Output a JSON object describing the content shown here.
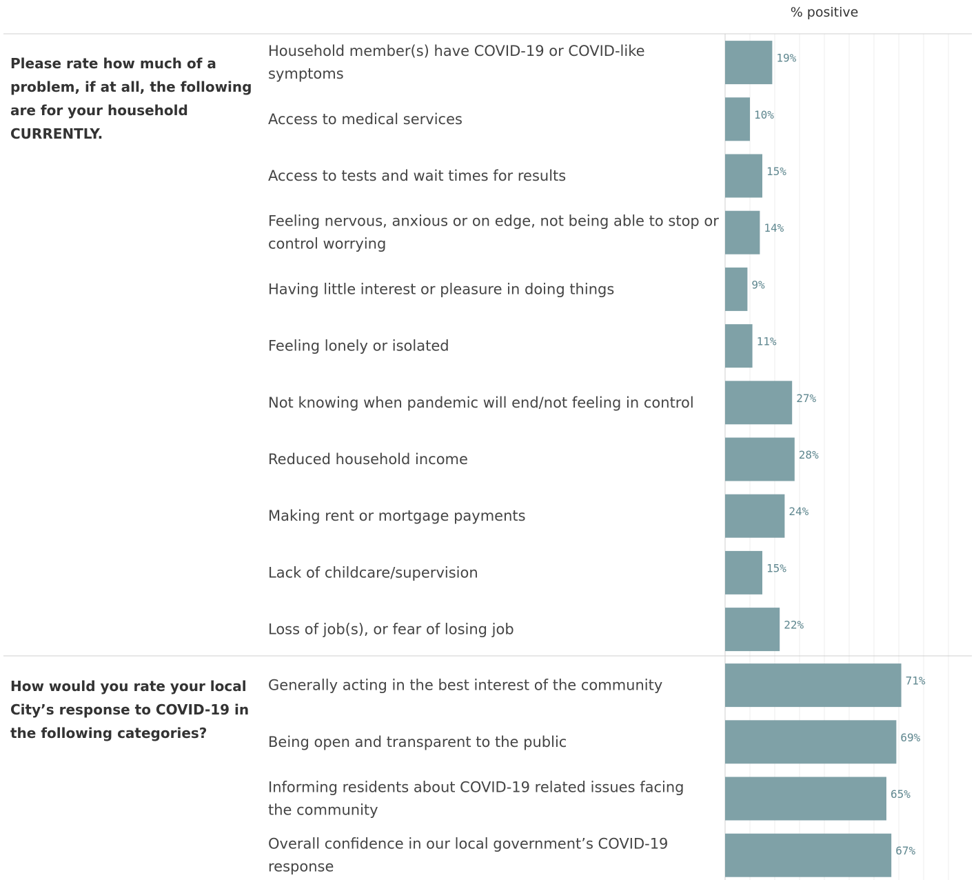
{
  "header": {
    "measure_label": "% positive"
  },
  "colors": {
    "bar": "#7fa1a7",
    "value_label": "#5f878f",
    "grid": "#ececec",
    "separator": "#cfcfcf"
  },
  "chart_data": {
    "type": "bar",
    "orientation": "horizontal",
    "value_axis_label": "% positive",
    "xlim": [
      0,
      100
    ],
    "grid": true,
    "value_format": "percent",
    "groups": [
      {
        "title": "Please rate how much of a problem, if at all, the following are for your household CURRENTLY.",
        "title_lines": [
          "Please rate how much of a",
          "problem, if at all, the following",
          "are for your household",
          "CURRENTLY."
        ],
        "rows": [
          {
            "label": "Household member(s) have COVID-19 or COVID-like symptoms",
            "lines": [
              "Household member(s) have COVID-19 or COVID-like",
              "symptoms"
            ],
            "value": 19,
            "display": "19%"
          },
          {
            "label": "Access to medical services",
            "lines": [
              "Access to medical services"
            ],
            "value": 10,
            "display": "10%"
          },
          {
            "label": "Access to tests and wait times for results",
            "lines": [
              "Access to tests and wait times for results"
            ],
            "value": 15,
            "display": "15%"
          },
          {
            "label": "Feeling nervous, anxious or on edge, not being able to stop or control worrying",
            "lines": [
              "Feeling nervous, anxious or on edge, not being able to stop or",
              "control worrying"
            ],
            "value": 14,
            "display": "14%"
          },
          {
            "label": "Having little interest or pleasure in doing things",
            "lines": [
              "Having little interest or pleasure in doing things"
            ],
            "value": 9,
            "display": "9%"
          },
          {
            "label": "Feeling lonely or isolated",
            "lines": [
              "Feeling lonely or isolated"
            ],
            "value": 11,
            "display": "11%"
          },
          {
            "label": "Not knowing when pandemic will end/not feeling in control",
            "lines": [
              "Not knowing when pandemic will end/not feeling in control"
            ],
            "value": 27,
            "display": "27%"
          },
          {
            "label": "Reduced household income",
            "lines": [
              "Reduced household income"
            ],
            "value": 28,
            "display": "28%"
          },
          {
            "label": "Making rent or mortgage payments",
            "lines": [
              "Making rent or mortgage payments"
            ],
            "value": 24,
            "display": "24%"
          },
          {
            "label": "Lack of childcare/supervision",
            "lines": [
              "Lack of childcare/supervision"
            ],
            "value": 15,
            "display": "15%"
          },
          {
            "label": "Loss of job(s), or fear of losing job",
            "lines": [
              "Loss of job(s), or fear of losing job"
            ],
            "value": 22,
            "display": "22%"
          }
        ]
      },
      {
        "title": "How would you rate your local City’s response to COVID-19 in the following categories?",
        "title_lines": [
          "How would you rate your local",
          "City’s response to COVID-19 in",
          "the following categories?"
        ],
        "rows": [
          {
            "label": "Generally acting in the best interest of the community",
            "lines": [
              "Generally acting in the best interest of the community"
            ],
            "value": 71,
            "display": "71%"
          },
          {
            "label": "Being open and transparent to the public",
            "lines": [
              "Being open and transparent to the public"
            ],
            "value": 69,
            "display": "69%"
          },
          {
            "label": "Informing residents about COVID-19 related issues facing the community",
            "lines": [
              "Informing residents about COVID-19 related issues facing",
              "the community"
            ],
            "value": 65,
            "display": "65%"
          },
          {
            "label": "Overall confidence in our local government’s COVID-19 response",
            "lines": [
              "Overall confidence in our local government’s COVID-19",
              "response"
            ],
            "value": 67,
            "display": "67%"
          }
        ]
      }
    ]
  }
}
